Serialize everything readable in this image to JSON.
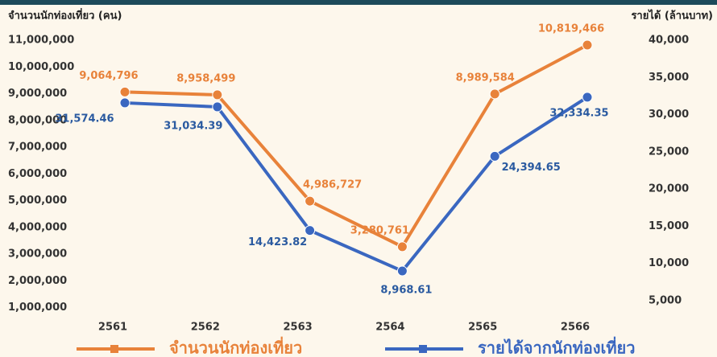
{
  "chart_data": {
    "type": "line",
    "y_label": "จำนวนนักท่องเที่ยว (คน)",
    "y2_label": "รายได้ (ล้านบาท)",
    "categories": [
      "2561",
      "2562",
      "2563",
      "2564",
      "2565",
      "2566"
    ],
    "series": [
      {
        "name": "จำนวนนักท่องเที่ยว",
        "color": "#e8823a",
        "values": [
          9064796,
          8958499,
          4986727,
          3280761,
          8989584,
          10819466
        ],
        "value_labels": [
          "9,064,796",
          "8,958,499",
          "4,986,727",
          "3,280,761",
          "8,989,584",
          "10,819,466"
        ]
      },
      {
        "name": "รายได้จากนักท่องเที่ยว",
        "color": "#3a67c0",
        "axis": "y2",
        "values": [
          31574.46,
          31034.39,
          14423.82,
          8968.61,
          24394.65,
          32334.35
        ],
        "value_labels": [
          "31,574.46",
          "31,034.39",
          "14,423.82",
          "8,968.61",
          "24,394.65",
          "32,334.35"
        ]
      }
    ],
    "ylim": [
      0,
      11000000
    ],
    "yticks": [
      {
        "value": 1000000,
        "label": "1,000,000"
      },
      {
        "value": 2000000,
        "label": "2,000,000"
      },
      {
        "value": 3000000,
        "label": "3,000,000"
      },
      {
        "value": 4000000,
        "label": "4,000,000"
      },
      {
        "value": 5000000,
        "label": "5,000,000"
      },
      {
        "value": 6000000,
        "label": "6,000,000"
      },
      {
        "value": 7000000,
        "label": "7,000,000"
      },
      {
        "value": 8000000,
        "label": "8,000,000"
      },
      {
        "value": 9000000,
        "label": "9,000,000"
      },
      {
        "value": 10000000,
        "label": "10,000,000"
      },
      {
        "value": 11000000,
        "label": "11,000,000"
      }
    ],
    "y2lim": [
      0,
      40000
    ],
    "y2ticks": [
      {
        "value": 5000,
        "label": "5,000"
      },
      {
        "value": 10000,
        "label": "10,000"
      },
      {
        "value": 15000,
        "label": "15,000"
      },
      {
        "value": 20000,
        "label": "20,000"
      },
      {
        "value": 25000,
        "label": "25,000"
      },
      {
        "value": 30000,
        "label": "30,000"
      },
      {
        "value": 35000,
        "label": "35,000"
      },
      {
        "value": 40000,
        "label": "40,000"
      }
    ],
    "grid": false
  }
}
